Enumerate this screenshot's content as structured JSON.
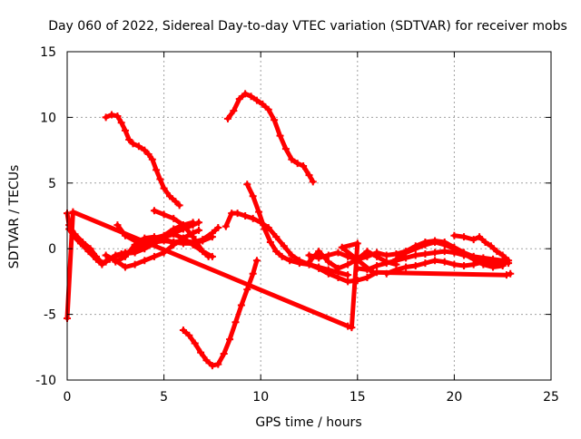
{
  "chart_data": {
    "type": "scatter",
    "title": "Day 060 of 2022, Sidereal Day-to-day VTEC variation (SDTVAR) for receiver mobs",
    "xlabel": "GPS time / hours",
    "ylabel": "SDTVAR / TECUs",
    "xlim": [
      0,
      25
    ],
    "ylim": [
      -10,
      15
    ],
    "xticks": [
      0,
      5,
      10,
      15,
      20,
      25
    ],
    "yticks": [
      -10,
      -5,
      0,
      5,
      10,
      15
    ],
    "xtick_labels": [
      "0",
      "5",
      "10",
      "15",
      "20",
      "25"
    ],
    "ytick_labels": [
      "-10",
      "-5",
      "0",
      "5",
      "10",
      "15"
    ],
    "grid": true,
    "legend": "none",
    "marker_color": "#ff0000",
    "series": [
      {
        "name": "trace-1",
        "points": [
          [
            0.0,
            2.7
          ],
          [
            0.1,
            1.8
          ],
          [
            0.4,
            1.1
          ],
          [
            0.8,
            0.5
          ],
          [
            1.2,
            0.0
          ],
          [
            1.5,
            -0.6
          ],
          [
            1.8,
            -1.1
          ],
          [
            2.2,
            -0.8
          ],
          [
            2.8,
            -0.4
          ],
          [
            3.5,
            -0.3
          ],
          [
            4.0,
            0.0
          ],
          [
            4.5,
            0.4
          ],
          [
            5.0,
            0.8
          ],
          [
            5.5,
            1.2
          ],
          [
            6.0,
            1.5
          ],
          [
            6.5,
            1.8
          ],
          [
            6.8,
            2.0
          ]
        ]
      },
      {
        "name": "trace-2",
        "points": [
          [
            0.1,
            1.5
          ],
          [
            0.3,
            1.0
          ],
          [
            0.7,
            0.4
          ],
          [
            1.1,
            -0.2
          ],
          [
            1.5,
            -0.8
          ],
          [
            1.8,
            -1.2
          ],
          [
            2.0,
            -1.0
          ],
          [
            2.5,
            -0.5
          ],
          [
            3.0,
            -0.3
          ],
          [
            3.5,
            -0.2
          ],
          [
            4.0,
            0.3
          ],
          [
            4.5,
            0.6
          ],
          [
            5.0,
            0.9
          ],
          [
            5.5,
            1.1
          ],
          [
            6.0,
            0.8
          ],
          [
            6.5,
            0.3
          ],
          [
            7.0,
            -0.2
          ],
          [
            7.3,
            -0.6
          ]
        ]
      },
      {
        "name": "trace-3",
        "points": [
          [
            2.0,
            -0.5
          ],
          [
            2.5,
            -0.9
          ],
          [
            3.0,
            -1.4
          ],
          [
            3.5,
            -1.2
          ],
          [
            4.0,
            -0.9
          ],
          [
            4.5,
            -0.6
          ],
          [
            5.0,
            -0.3
          ],
          [
            5.5,
            0.3
          ],
          [
            6.0,
            0.8
          ],
          [
            6.5,
            1.2
          ],
          [
            6.8,
            1.4
          ]
        ]
      },
      {
        "name": "trace-4",
        "points": [
          [
            2.5,
            -1.0
          ],
          [
            3.0,
            -0.6
          ],
          [
            3.5,
            0.3
          ],
          [
            4.0,
            0.8
          ],
          [
            4.5,
            0.9
          ],
          [
            5.0,
            0.7
          ],
          [
            5.5,
            0.5
          ],
          [
            6.0,
            0.4
          ],
          [
            6.5,
            0.4
          ],
          [
            7.0,
            0.6
          ],
          [
            7.5,
            0.9
          ]
        ]
      },
      {
        "name": "trace-5",
        "points": [
          [
            2.6,
            1.8
          ],
          [
            3.0,
            1.0
          ],
          [
            3.5,
            0.6
          ],
          [
            4.0,
            0.4
          ],
          [
            4.5,
            0.5
          ],
          [
            5.0,
            0.6
          ],
          [
            5.5,
            0.5
          ],
          [
            6.0,
            0.6
          ],
          [
            6.5,
            0.5
          ],
          [
            7.0,
            0.7
          ],
          [
            7.5,
            1.2
          ],
          [
            7.8,
            1.6
          ]
        ]
      },
      {
        "name": "trace-6",
        "points": [
          [
            3.5,
            0.2
          ],
          [
            4.0,
            0.5
          ],
          [
            4.5,
            0.8
          ],
          [
            5.0,
            1.0
          ],
          [
            5.5,
            1.5
          ],
          [
            6.0,
            1.8
          ],
          [
            6.5,
            2.0
          ]
        ]
      },
      {
        "name": "trace-7",
        "points": [
          [
            4.5,
            2.9
          ],
          [
            5.0,
            2.6
          ],
          [
            5.5,
            2.3
          ],
          [
            6.0,
            1.8
          ],
          [
            6.5,
            0.9
          ],
          [
            7.0,
            -0.2
          ],
          [
            7.5,
            -0.6
          ]
        ]
      },
      {
        "name": "trace-8",
        "points": [
          [
            2.0,
            10.0
          ],
          [
            2.3,
            10.2
          ],
          [
            2.6,
            10.1
          ],
          [
            2.8,
            9.6
          ],
          [
            3.0,
            9.0
          ],
          [
            3.2,
            8.3
          ],
          [
            3.4,
            8.0
          ],
          [
            3.7,
            7.8
          ],
          [
            4.0,
            7.5
          ],
          [
            4.2,
            7.2
          ],
          [
            4.4,
            6.8
          ],
          [
            4.6,
            6.0
          ],
          [
            4.8,
            5.3
          ],
          [
            5.0,
            4.6
          ],
          [
            5.3,
            4.0
          ],
          [
            5.6,
            3.6
          ],
          [
            5.8,
            3.3
          ]
        ]
      },
      {
        "name": "trace-9",
        "points": [
          [
            6.0,
            -6.2
          ],
          [
            6.3,
            -6.6
          ],
          [
            6.6,
            -7.2
          ],
          [
            6.9,
            -7.9
          ],
          [
            7.2,
            -8.5
          ],
          [
            7.5,
            -8.9
          ],
          [
            7.8,
            -8.8
          ],
          [
            8.1,
            -8.0
          ],
          [
            8.4,
            -6.9
          ],
          [
            8.7,
            -5.6
          ],
          [
            9.0,
            -4.3
          ],
          [
            9.3,
            -3.1
          ],
          [
            9.6,
            -1.9
          ],
          [
            9.8,
            -0.9
          ]
        ]
      },
      {
        "name": "trace-10",
        "points": [
          [
            8.3,
            9.9
          ],
          [
            8.6,
            10.5
          ],
          [
            8.9,
            11.4
          ],
          [
            9.2,
            11.8
          ],
          [
            9.5,
            11.6
          ],
          [
            9.8,
            11.3
          ],
          [
            10.1,
            11.0
          ],
          [
            10.4,
            10.6
          ],
          [
            10.7,
            9.8
          ],
          [
            11.0,
            8.6
          ],
          [
            11.3,
            7.6
          ],
          [
            11.6,
            6.8
          ],
          [
            11.9,
            6.5
          ],
          [
            12.2,
            6.3
          ],
          [
            12.5,
            5.6
          ],
          [
            12.7,
            5.1
          ]
        ]
      },
      {
        "name": "trace-11",
        "points": [
          [
            8.2,
            1.7
          ],
          [
            8.5,
            2.7
          ],
          [
            8.8,
            2.7
          ],
          [
            9.2,
            2.5
          ],
          [
            9.6,
            2.3
          ],
          [
            10.0,
            2.0
          ],
          [
            10.4,
            1.6
          ],
          [
            10.8,
            0.9
          ],
          [
            11.2,
            0.2
          ],
          [
            11.6,
            -0.5
          ],
          [
            12.0,
            -0.9
          ],
          [
            12.5,
            -1.2
          ],
          [
            13.0,
            -1.4
          ],
          [
            13.5,
            -1.6
          ],
          [
            14.0,
            -1.8
          ],
          [
            14.5,
            -2.0
          ]
        ]
      },
      {
        "name": "trace-12",
        "points": [
          [
            9.3,
            4.9
          ],
          [
            9.6,
            4.0
          ],
          [
            9.9,
            2.8
          ],
          [
            10.2,
            1.5
          ],
          [
            10.5,
            0.5
          ],
          [
            10.8,
            -0.2
          ],
          [
            11.1,
            -0.6
          ],
          [
            11.5,
            -0.9
          ],
          [
            12.0,
            -1.1
          ],
          [
            12.5,
            -1.2
          ],
          [
            13.0,
            -1.5
          ],
          [
            13.5,
            -1.9
          ],
          [
            14.0,
            -2.2
          ],
          [
            14.5,
            -2.5
          ],
          [
            15.0,
            -2.4
          ],
          [
            15.5,
            -2.2
          ],
          [
            16.0,
            -1.8
          ]
        ]
      },
      {
        "name": "trace-13",
        "points": [
          [
            12.5,
            -0.5
          ],
          [
            13.0,
            -0.7
          ],
          [
            13.5,
            -0.5
          ],
          [
            14.0,
            -0.3
          ],
          [
            14.5,
            -0.6
          ],
          [
            15.0,
            -0.8
          ],
          [
            15.5,
            -0.6
          ],
          [
            16.0,
            -0.3
          ],
          [
            16.5,
            -0.5
          ],
          [
            17.0,
            -0.4
          ],
          [
            17.5,
            -0.2
          ],
          [
            18.0,
            0.2
          ],
          [
            18.5,
            0.5
          ],
          [
            19.0,
            0.6
          ],
          [
            19.5,
            0.5
          ],
          [
            20.0,
            0.1
          ],
          [
            20.5,
            -0.3
          ],
          [
            21.0,
            -0.6
          ],
          [
            21.5,
            -0.8
          ],
          [
            22.0,
            -0.9
          ],
          [
            22.5,
            -1.0
          ],
          [
            22.8,
            -1.1
          ]
        ]
      },
      {
        "name": "trace-14",
        "points": [
          [
            15.0,
            -1.5
          ],
          [
            15.5,
            -1.6
          ],
          [
            16.0,
            -1.3
          ],
          [
            16.5,
            -1.1
          ],
          [
            17.0,
            -0.9
          ],
          [
            17.5,
            -0.7
          ],
          [
            18.0,
            -0.5
          ],
          [
            18.5,
            -0.4
          ],
          [
            19.0,
            -0.3
          ],
          [
            19.5,
            -0.2
          ],
          [
            20.0,
            -0.3
          ],
          [
            20.5,
            -0.5
          ],
          [
            21.0,
            -0.6
          ],
          [
            21.5,
            -0.7
          ],
          [
            22.0,
            -0.8
          ],
          [
            22.5,
            -0.9
          ]
        ]
      },
      {
        "name": "trace-15",
        "points": [
          [
            16.5,
            -1.9
          ],
          [
            17.0,
            -1.6
          ],
          [
            17.5,
            -1.4
          ],
          [
            18.0,
            -1.3
          ],
          [
            18.5,
            -1.1
          ],
          [
            19.0,
            -0.9
          ],
          [
            19.5,
            -1.0
          ],
          [
            20.0,
            -1.2
          ],
          [
            20.5,
            -1.3
          ],
          [
            21.0,
            -1.2
          ],
          [
            21.5,
            -1.0
          ],
          [
            22.0,
            -1.1
          ],
          [
            22.5,
            -1.2
          ]
        ]
      },
      {
        "name": "trace-16",
        "points": [
          [
            20.0,
            1.0
          ],
          [
            20.5,
            0.9
          ],
          [
            21.0,
            0.7
          ],
          [
            21.3,
            0.9
          ],
          [
            21.6,
            0.5
          ],
          [
            21.9,
            0.2
          ],
          [
            22.2,
            -0.2
          ],
          [
            22.5,
            -0.5
          ],
          [
            22.8,
            -0.9
          ]
        ]
      },
      {
        "name": "trace-17",
        "points": [
          [
            17.0,
            -0.8
          ],
          [
            17.5,
            -0.3
          ],
          [
            18.0,
            0.0
          ],
          [
            18.5,
            0.3
          ],
          [
            19.0,
            0.5
          ],
          [
            19.5,
            0.3
          ],
          [
            20.0,
            0.0
          ],
          [
            20.5,
            -0.4
          ],
          [
            21.0,
            -0.8
          ],
          [
            21.5,
            -1.2
          ],
          [
            22.0,
            -1.4
          ],
          [
            22.5,
            -1.3
          ]
        ]
      },
      {
        "name": "trace-18",
        "points": [
          [
            12.5,
            -1.0
          ],
          [
            13.0,
            -0.2
          ],
          [
            13.5,
            -1.0
          ],
          [
            14.0,
            -1.5
          ],
          [
            14.5,
            -1.2
          ],
          [
            15.0,
            -0.8
          ],
          [
            15.5,
            -0.2
          ],
          [
            16.0,
            -0.6
          ],
          [
            16.5,
            -1.0
          ],
          [
            17.0,
            -1.2
          ]
        ]
      },
      {
        "name": "isolated-points",
        "points": [
          [
            0.0,
            -5.3
          ],
          [
            0.3,
            2.8
          ],
          [
            14.5,
            -5.9
          ],
          [
            14.7,
            -6.0
          ],
          [
            15.0,
            0.4
          ],
          [
            14.2,
            0.1
          ],
          [
            15.8,
            -1.8
          ],
          [
            22.7,
            -2.0
          ],
          [
            22.9,
            -1.9
          ]
        ]
      }
    ]
  }
}
